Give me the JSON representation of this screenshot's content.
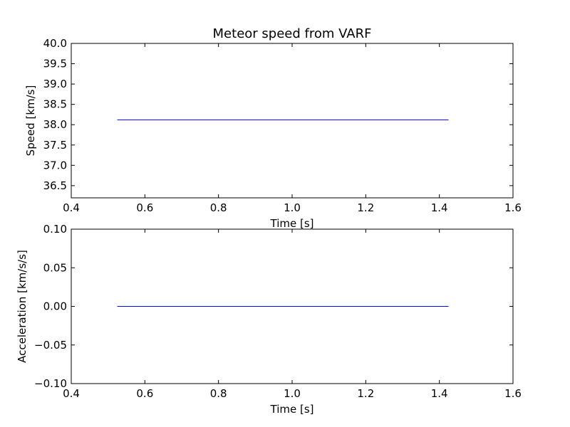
{
  "chart_data": [
    {
      "type": "line",
      "title": "Meteor speed from  VARF",
      "xlabel": "Time [s]",
      "ylabel": "Speed [km/s]",
      "xlim": [
        0.4,
        1.6
      ],
      "ylim": [
        36.2,
        40.0
      ],
      "xticks": [
        0.4,
        0.6,
        0.8,
        1.0,
        1.2,
        1.4,
        1.6
      ],
      "xtick_labels": [
        "0.4",
        "0.6",
        "0.8",
        "1.0",
        "1.2",
        "1.4",
        "1.6"
      ],
      "yticks": [
        36.5,
        37.0,
        37.5,
        38.0,
        38.5,
        39.0,
        39.5,
        40.0
      ],
      "ytick_labels": [
        "36.5",
        "37.0",
        "37.5",
        "38.0",
        "38.5",
        "39.0",
        "39.5",
        "40.0"
      ],
      "grid": false,
      "series": [
        {
          "color": "#0000ff",
          "x": [
            0.525,
            1.425
          ],
          "y": [
            38.12,
            38.12
          ]
        }
      ]
    },
    {
      "type": "line",
      "title": "",
      "xlabel": "Time [s]",
      "ylabel": "Acceleration [km/s/s]",
      "xlim": [
        0.4,
        1.6
      ],
      "ylim": [
        -0.1,
        0.1
      ],
      "xticks": [
        0.4,
        0.6,
        0.8,
        1.0,
        1.2,
        1.4,
        1.6
      ],
      "xtick_labels": [
        "0.4",
        "0.6",
        "0.8",
        "1.0",
        "1.2",
        "1.4",
        "1.6"
      ],
      "yticks": [
        -0.1,
        -0.05,
        0.0,
        0.05,
        0.1
      ],
      "ytick_labels": [
        "−0.10",
        "−0.05",
        "0.00",
        "0.05",
        "0.10"
      ],
      "grid": false,
      "series": [
        {
          "color": "#0000ff",
          "x": [
            0.525,
            1.425
          ],
          "y": [
            0.0,
            0.0
          ]
        }
      ]
    }
  ]
}
